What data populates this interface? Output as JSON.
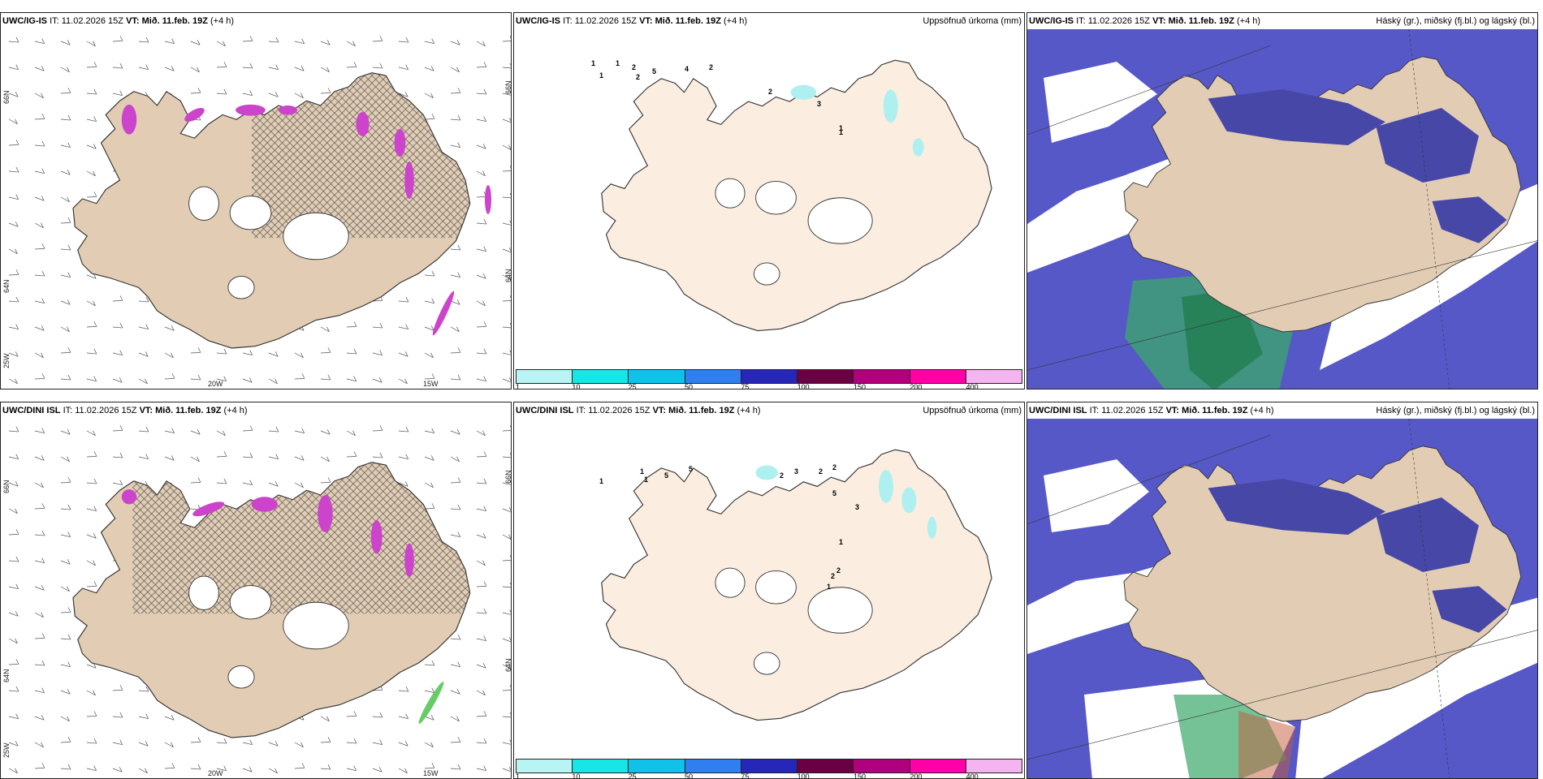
{
  "panels": [
    {
      "model": "UWC/IG-IS",
      "it_label": "IT:",
      "it_value": "11.02.2026 15Z",
      "vt_label": "VT:",
      "vt_value": "Mið. 11.feb. 19Z",
      "lead": "(+4 h)",
      "right_title": "",
      "coords": [
        "66N",
        "64N",
        "25W",
        "20W",
        "15W",
        "66N",
        "64N"
      ]
    },
    {
      "model": "UWC/IG-IS",
      "it_label": "IT:",
      "it_value": "11.02.2026 15Z",
      "vt_label": "VT:",
      "vt_value": "Mið. 11.feb. 19Z",
      "lead": "(+4 h)",
      "right_title": "Uppsöfnuð úrkoma (mm)",
      "precip_numbers": [
        "1",
        "1",
        "1",
        "2",
        "2",
        "5",
        "4",
        "2",
        "2",
        "3",
        "1",
        "1"
      ]
    },
    {
      "model": "UWC/IG-IS",
      "it_label": "IT:",
      "it_value": "11.02.2026 15Z",
      "vt_label": "VT:",
      "vt_value": "Mið. 11.feb. 19Z",
      "lead": "(+4 h)",
      "right_title": "Háský (gr.), miðský (fj.bl.) og lágský (bl.)"
    },
    {
      "model": "UWC/DINI ISL",
      "it_label": "IT:",
      "it_value": "11.02.2026 15Z",
      "vt_label": "VT:",
      "vt_value": "Mið. 11.feb. 19Z",
      "lead": "(+4 h)",
      "right_title": "",
      "coords": [
        "66N",
        "64N",
        "25W",
        "20W",
        "15W",
        "66N",
        "64N"
      ]
    },
    {
      "model": "UWC/DINI ISL",
      "it_label": "IT:",
      "it_value": "11.02.2026 15Z",
      "vt_label": "VT:",
      "vt_value": "Mið. 11.feb. 19Z",
      "lead": "(+4 h)",
      "right_title": "Uppsöfnuð úrkoma (mm)",
      "precip_numbers": [
        "1",
        "1",
        "1",
        "5",
        "5",
        "2",
        "3",
        "2",
        "2",
        "5",
        "3",
        "1",
        "2",
        "2",
        "1"
      ]
    },
    {
      "model": "UWC/DINI ISL",
      "it_label": "IT:",
      "it_value": "11.02.2026 15Z",
      "vt_label": "VT:",
      "vt_value": "Mið. 11.feb. 19Z",
      "lead": "(+4 h)",
      "right_title": "Háský (gr.), miðský (fj.bl.) og lágský (bl.)"
    }
  ],
  "legend": {
    "ticks": [
      "1",
      "10",
      "25",
      "50",
      "75",
      "100",
      "150",
      "200",
      "400"
    ],
    "colors": [
      "#b8f4f4",
      "#18e6e6",
      "#10c2ea",
      "#2f7ff0",
      "#2626b8",
      "#6a0043",
      "#b0007e",
      "#ff00a8",
      "#f4b4f0"
    ]
  },
  "colors": {
    "land": "#e2cdb4",
    "land_light": "#fbeee0",
    "sea_cloud": "#5658c8",
    "cloud_dark": "#4747a8",
    "precip_magenta": "#cc44cc",
    "precip_cyan": "#aef0f0",
    "cloud_green": "#3aa86a"
  }
}
